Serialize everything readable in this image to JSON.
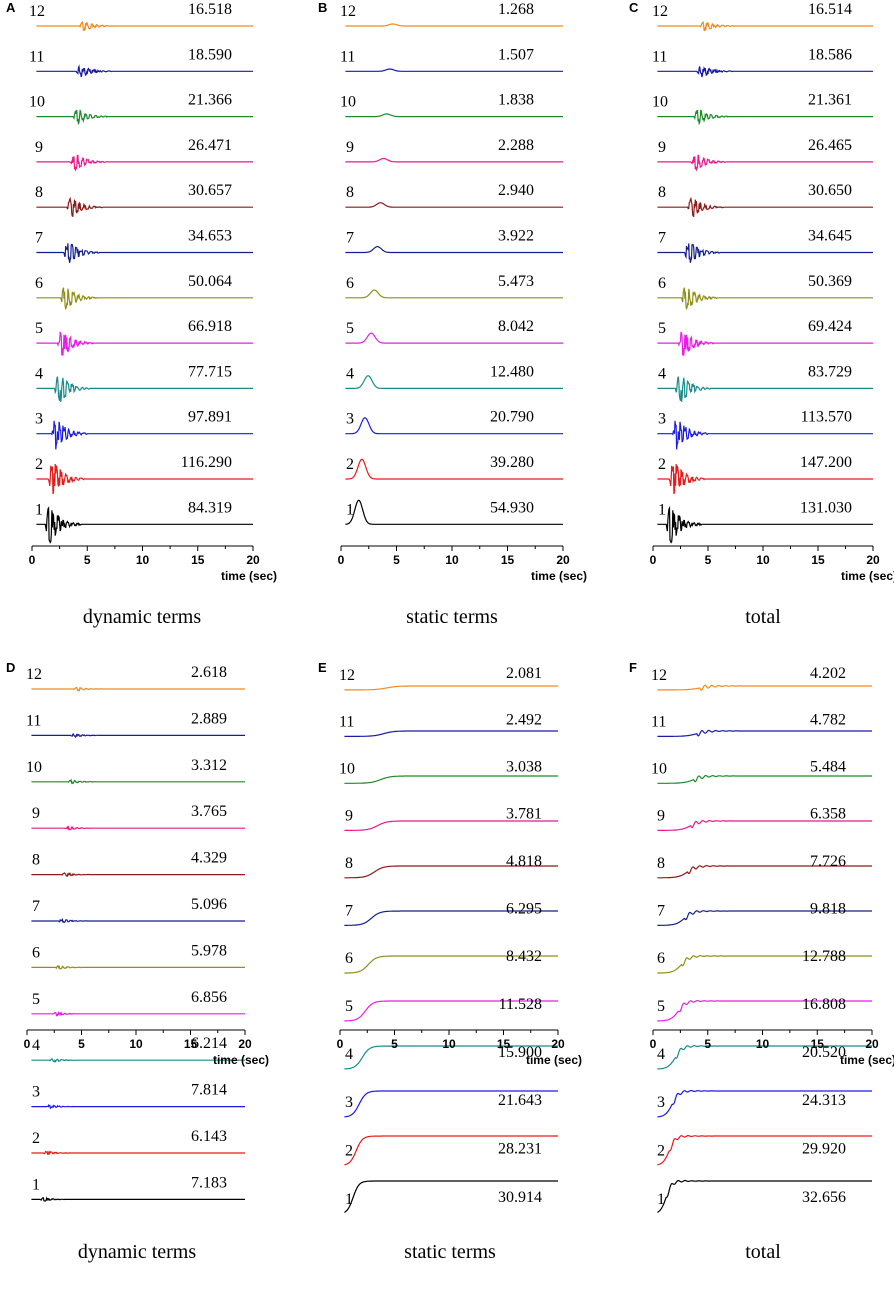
{
  "chart_data": [
    {
      "type": "line",
      "panel": "A",
      "title": "dynamic terms",
      "xlabel": "time (sec)",
      "xlim": [
        0,
        20
      ],
      "xticks": [
        "0",
        "5",
        "10",
        "15",
        "20"
      ],
      "series": [
        {
          "name": "12",
          "peak": "16.518",
          "color": "#f28a1c"
        },
        {
          "name": "11",
          "peak": "18.590",
          "color": "#1a1aa8"
        },
        {
          "name": "10",
          "peak": "21.366",
          "color": "#1f8a2a"
        },
        {
          "name": "9",
          "peak": "26.471",
          "color": "#e8188c"
        },
        {
          "name": "8",
          "peak": "30.657",
          "color": "#8b1a1a"
        },
        {
          "name": "7",
          "peak": "34.653",
          "color": "#14208a"
        },
        {
          "name": "6",
          "peak": "50.064",
          "color": "#8f8f1a"
        },
        {
          "name": "5",
          "peak": "66.918",
          "color": "#e61ee6"
        },
        {
          "name": "4",
          "peak": "77.715",
          "color": "#1a8a8a"
        },
        {
          "name": "3",
          "peak": "97.891",
          "color": "#1a1ae6"
        },
        {
          "name": "2",
          "peak": "116.290",
          "color": "#e61a1a"
        },
        {
          "name": "1",
          "peak": "84.319",
          "color": "#000000"
        }
      ]
    },
    {
      "type": "line",
      "panel": "B",
      "title": "static terms",
      "xlabel": "time (sec)",
      "xlim": [
        0,
        20
      ],
      "xticks": [
        "0",
        "5",
        "10",
        "15",
        "20"
      ],
      "series": [
        {
          "name": "12",
          "peak": "1.268",
          "color": "#f28a1c"
        },
        {
          "name": "11",
          "peak": "1.507",
          "color": "#1a1aa8"
        },
        {
          "name": "10",
          "peak": "1.838",
          "color": "#1f8a2a"
        },
        {
          "name": "9",
          "peak": "2.288",
          "color": "#e8188c"
        },
        {
          "name": "8",
          "peak": "2.940",
          "color": "#8b1a1a"
        },
        {
          "name": "7",
          "peak": "3.922",
          "color": "#14208a"
        },
        {
          "name": "6",
          "peak": "5.473",
          "color": "#8f8f1a"
        },
        {
          "name": "5",
          "peak": "8.042",
          "color": "#e61ee6"
        },
        {
          "name": "4",
          "peak": "12.480",
          "color": "#1a8a8a"
        },
        {
          "name": "3",
          "peak": "20.790",
          "color": "#1a1ae6"
        },
        {
          "name": "2",
          "peak": "39.280",
          "color": "#e61a1a"
        },
        {
          "name": "1",
          "peak": "54.930",
          "color": "#000000"
        }
      ]
    },
    {
      "type": "line",
      "panel": "C",
      "title": "total",
      "xlabel": "time (sec)",
      "xlim": [
        0,
        20
      ],
      "xticks": [
        "0",
        "5",
        "10",
        "15",
        "20"
      ],
      "series": [
        {
          "name": "12",
          "peak": "16.514",
          "color": "#f28a1c"
        },
        {
          "name": "11",
          "peak": "18.586",
          "color": "#1a1aa8"
        },
        {
          "name": "10",
          "peak": "21.361",
          "color": "#1f8a2a"
        },
        {
          "name": "9",
          "peak": "26.465",
          "color": "#e8188c"
        },
        {
          "name": "8",
          "peak": "30.650",
          "color": "#8b1a1a"
        },
        {
          "name": "7",
          "peak": "34.645",
          "color": "#14208a"
        },
        {
          "name": "6",
          "peak": "50.369",
          "color": "#8f8f1a"
        },
        {
          "name": "5",
          "peak": "69.424",
          "color": "#e61ee6"
        },
        {
          "name": "4",
          "peak": "83.729",
          "color": "#1a8a8a"
        },
        {
          "name": "3",
          "peak": "113.570",
          "color": "#1a1ae6"
        },
        {
          "name": "2",
          "peak": "147.200",
          "color": "#e61a1a"
        },
        {
          "name": "1",
          "peak": "131.030",
          "color": "#000000"
        }
      ]
    },
    {
      "type": "line",
      "panel": "D",
      "title": "dynamic terms",
      "xlabel": "time (sec)",
      "xlim": [
        0,
        20
      ],
      "xticks": [
        "0",
        "5",
        "10",
        "15",
        "20"
      ],
      "series": [
        {
          "name": "12",
          "peak": "2.618",
          "color": "#f28a1c"
        },
        {
          "name": "11",
          "peak": "2.889",
          "color": "#1a1aa8"
        },
        {
          "name": "10",
          "peak": "3.312",
          "color": "#1f8a2a"
        },
        {
          "name": "9",
          "peak": "3.765",
          "color": "#e8188c"
        },
        {
          "name": "8",
          "peak": "4.329",
          "color": "#8b1a1a"
        },
        {
          "name": "7",
          "peak": "5.096",
          "color": "#14208a"
        },
        {
          "name": "6",
          "peak": "5.978",
          "color": "#8f8f1a"
        },
        {
          "name": "5",
          "peak": "6.856",
          "color": "#e61ee6"
        },
        {
          "name": "4",
          "peak": "6.214",
          "color": "#1a8a8a"
        },
        {
          "name": "3",
          "peak": "7.814",
          "color": "#1a1ae6"
        },
        {
          "name": "2",
          "peak": "6.143",
          "color": "#e61a1a"
        },
        {
          "name": "1",
          "peak": "7.183",
          "color": "#000000"
        }
      ]
    },
    {
      "type": "line",
      "panel": "E",
      "title": "static terms",
      "xlabel": "time (sec)",
      "xlim": [
        0,
        20
      ],
      "xticks": [
        "0",
        "5",
        "10",
        "15",
        "20"
      ],
      "series": [
        {
          "name": "12",
          "peak": "2.081",
          "color": "#f28a1c"
        },
        {
          "name": "11",
          "peak": "2.492",
          "color": "#1a1aa8"
        },
        {
          "name": "10",
          "peak": "3.038",
          "color": "#1f8a2a"
        },
        {
          "name": "9",
          "peak": "3.781",
          "color": "#e8188c"
        },
        {
          "name": "8",
          "peak": "4.818",
          "color": "#8b1a1a"
        },
        {
          "name": "7",
          "peak": "6.295",
          "color": "#14208a"
        },
        {
          "name": "6",
          "peak": "8.432",
          "color": "#8f8f1a"
        },
        {
          "name": "5",
          "peak": "11.528",
          "color": "#e61ee6"
        },
        {
          "name": "4",
          "peak": "15.900",
          "color": "#1a8a8a"
        },
        {
          "name": "3",
          "peak": "21.643",
          "color": "#1a1ae6"
        },
        {
          "name": "2",
          "peak": "28.231",
          "color": "#e61a1a"
        },
        {
          "name": "1",
          "peak": "30.914",
          "color": "#000000"
        }
      ]
    },
    {
      "type": "line",
      "panel": "F",
      "title": "total",
      "xlabel": "time (sec)",
      "xlim": [
        0,
        20
      ],
      "xticks": [
        "0",
        "5",
        "10",
        "15",
        "20"
      ],
      "series": [
        {
          "name": "12",
          "peak": "4.202",
          "color": "#f28a1c"
        },
        {
          "name": "11",
          "peak": "4.782",
          "color": "#1a1aa8"
        },
        {
          "name": "10",
          "peak": "5.484",
          "color": "#1f8a2a"
        },
        {
          "name": "9",
          "peak": "6.358",
          "color": "#e8188c"
        },
        {
          "name": "8",
          "peak": "7.726",
          "color": "#8b1a1a"
        },
        {
          "name": "7",
          "peak": "9.818",
          "color": "#14208a"
        },
        {
          "name": "6",
          "peak": "12.788",
          "color": "#8f8f1a"
        },
        {
          "name": "5",
          "peak": "16.808",
          "color": "#e61ee6"
        },
        {
          "name": "4",
          "peak": "20.520",
          "color": "#1a8a8a"
        },
        {
          "name": "3",
          "peak": "24.313",
          "color": "#1a1ae6"
        },
        {
          "name": "2",
          "peak": "29.920",
          "color": "#e61a1a"
        },
        {
          "name": "1",
          "peak": "32.656",
          "color": "#000000"
        }
      ]
    }
  ]
}
